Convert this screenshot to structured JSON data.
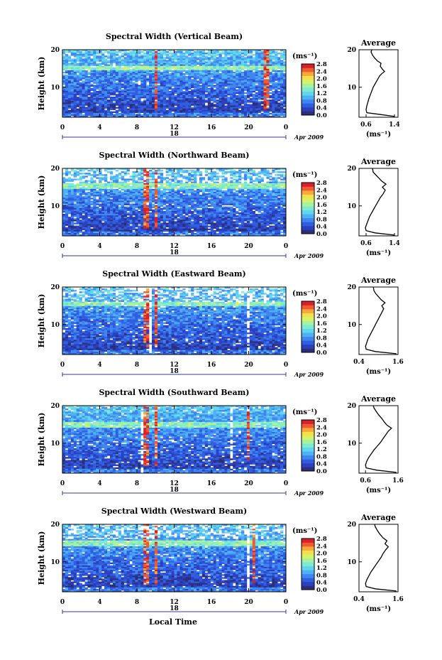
{
  "figure": {
    "xlabel": "Local Time",
    "date_label": "Apr 2009",
    "ylabel": "Height (km)",
    "units_label": "(ms⁻¹)",
    "average_title": "Average",
    "colors": {
      "colormap": [
        "#2b2f7a",
        "#2c3fbf",
        "#2f5ee0",
        "#3f86f0",
        "#4fb0f5",
        "#60d6ee",
        "#7fead2",
        "#a6f2a0",
        "#d4f26a",
        "#f4e04a",
        "#f7a83a",
        "#ef5a30",
        "#d8202a"
      ]
    }
  },
  "chart_data": [
    {
      "type": "heatmap",
      "title": "Spectral Width (Vertical Beam)",
      "xlim": [
        0,
        24
      ],
      "ylim": [
        2,
        20
      ],
      "xticks": [
        "0",
        "4",
        "8",
        "12",
        "16",
        "20",
        "0"
      ],
      "day_label": "18",
      "yticks": [
        "10",
        "20"
      ],
      "colorbar": {
        "range": [
          0.0,
          2.8
        ],
        "ticks": [
          "0.0",
          "0.4",
          "0.8",
          "1.2",
          "1.6",
          "2.0",
          "2.4",
          "2.8"
        ]
      },
      "features": {
        "red_columns": [
          10.0,
          21.8
        ],
        "warm_bands": [
          [
            14.5,
            15.8
          ]
        ],
        "sparse_top": false,
        "white_columns": []
      },
      "average": {
        "xticks": [
          "0.6",
          "1.4"
        ],
        "xlim": [
          0.4,
          1.5
        ],
        "yticks": [
          "10",
          "20"
        ],
        "ylim": [
          2,
          20
        ],
        "xlabel": "(ms⁻¹)",
        "profile": [
          [
            1.4,
            2.2
          ],
          [
            0.95,
            2.8
          ],
          [
            0.62,
            3.2
          ],
          [
            0.6,
            4.0
          ],
          [
            0.62,
            5.0
          ],
          [
            0.65,
            6.0
          ],
          [
            0.68,
            7.0
          ],
          [
            0.72,
            8.0
          ],
          [
            0.76,
            9.0
          ],
          [
            0.8,
            10.0
          ],
          [
            0.86,
            11.0
          ],
          [
            0.92,
            12.0
          ],
          [
            0.98,
            13.0
          ],
          [
            1.04,
            13.6
          ],
          [
            1.12,
            14.2
          ],
          [
            1.06,
            14.8
          ],
          [
            1.0,
            15.6
          ],
          [
            1.02,
            16.4
          ],
          [
            0.92,
            17.0
          ],
          [
            0.84,
            17.8
          ],
          [
            0.78,
            18.6
          ],
          [
            0.74,
            19.4
          ],
          [
            0.76,
            20.0
          ]
        ]
      }
    },
    {
      "type": "heatmap",
      "title": "Spectral Width (Northward Beam)",
      "xlim": [
        0,
        24
      ],
      "ylim": [
        2,
        20
      ],
      "xticks": [
        "0",
        "4",
        "8",
        "12",
        "16",
        "20",
        "0"
      ],
      "day_label": "18",
      "yticks": [
        "10",
        "20"
      ],
      "colorbar": {
        "range": [
          0.0,
          2.8
        ],
        "ticks": [
          "0.0",
          "0.4",
          "0.8",
          "1.2",
          "1.6",
          "2.0",
          "2.4",
          "2.8"
        ]
      },
      "features": {
        "red_columns": [
          9.0,
          10.0
        ],
        "warm_bands": [
          [
            14.5,
            16.0
          ]
        ],
        "sparse_top": true,
        "white_columns": []
      },
      "average": {
        "xticks": [
          "0.6",
          "1.4"
        ],
        "xlim": [
          0.4,
          1.5
        ],
        "yticks": [
          "10",
          "20"
        ],
        "ylim": [
          2,
          20
        ],
        "xlabel": "(ms⁻¹)",
        "profile": [
          [
            1.4,
            2.2
          ],
          [
            0.85,
            2.8
          ],
          [
            0.6,
            3.4
          ],
          [
            0.58,
            4.2
          ],
          [
            0.62,
            5.2
          ],
          [
            0.66,
            6.2
          ],
          [
            0.7,
            7.2
          ],
          [
            0.76,
            8.2
          ],
          [
            0.82,
            9.2
          ],
          [
            0.88,
            10.2
          ],
          [
            0.94,
            11.2
          ],
          [
            1.0,
            12.2
          ],
          [
            1.08,
            13.2
          ],
          [
            1.14,
            14.2
          ],
          [
            1.06,
            15.0
          ],
          [
            1.16,
            15.8
          ],
          [
            1.04,
            16.6
          ],
          [
            0.96,
            17.4
          ],
          [
            0.88,
            18.2
          ],
          [
            0.8,
            19.0
          ],
          [
            0.78,
            20.0
          ]
        ]
      }
    },
    {
      "type": "heatmap",
      "title": "Spectral Width (Eastward Beam)",
      "xlim": [
        0,
        24
      ],
      "ylim": [
        2,
        20
      ],
      "xticks": [
        "0",
        "4",
        "8",
        "12",
        "16",
        "20",
        "0"
      ],
      "day_label": "18",
      "yticks": [
        "10",
        "20"
      ],
      "colorbar": {
        "range": [
          0.0,
          2.8
        ],
        "ticks": [
          "0.0",
          "0.4",
          "0.8",
          "1.2",
          "1.6",
          "2.0",
          "2.4",
          "2.8"
        ]
      },
      "features": {
        "red_columns": [
          9.0,
          10.0
        ],
        "warm_bands": [
          [
            15.0,
            16.2
          ]
        ],
        "sparse_top": true,
        "white_columns": [
          9.3,
          20.0
        ]
      },
      "average": {
        "xticks": [
          "0.4",
          "1.6"
        ],
        "xlim": [
          0.4,
          1.6
        ],
        "yticks": [
          "10",
          "20"
        ],
        "ylim": [
          2,
          20
        ],
        "xlabel": "(ms⁻¹)",
        "profile": [
          [
            1.55,
            2.2
          ],
          [
            0.9,
            2.8
          ],
          [
            0.62,
            3.4
          ],
          [
            0.6,
            4.2
          ],
          [
            0.64,
            5.2
          ],
          [
            0.68,
            6.2
          ],
          [
            0.74,
            7.2
          ],
          [
            0.8,
            8.2
          ],
          [
            0.86,
            9.2
          ],
          [
            0.92,
            10.2
          ],
          [
            0.98,
            11.2
          ],
          [
            1.04,
            12.2
          ],
          [
            1.1,
            13.2
          ],
          [
            1.16,
            14.2
          ],
          [
            1.1,
            15.0
          ],
          [
            1.2,
            15.8
          ],
          [
            1.08,
            16.6
          ],
          [
            1.0,
            17.4
          ],
          [
            0.92,
            18.2
          ],
          [
            0.86,
            19.0
          ],
          [
            0.84,
            20.0
          ]
        ]
      }
    },
    {
      "type": "heatmap",
      "title": "Spectral Width (Southward Beam)",
      "xlim": [
        0,
        24
      ],
      "ylim": [
        2,
        20
      ],
      "xticks": [
        "0",
        "4",
        "8",
        "12",
        "16",
        "20",
        "0"
      ],
      "day_label": "18",
      "yticks": [
        "10",
        "20"
      ],
      "colorbar": {
        "range": [
          0.0,
          2.8
        ],
        "ticks": [
          "0.0",
          "0.4",
          "0.8",
          "1.2",
          "1.6",
          "2.0",
          "2.4",
          "2.8"
        ]
      },
      "features": {
        "red_columns": [
          9.0,
          10.0,
          20.0
        ],
        "warm_bands": [
          [
            14.0,
            15.5
          ]
        ],
        "sparse_top": false,
        "white_columns": [
          8.6,
          18.2,
          19.2
        ]
      },
      "average": {
        "xticks": [
          "0.6",
          "1.6"
        ],
        "xlim": [
          0.4,
          1.6
        ],
        "yticks": [
          "10",
          "20"
        ],
        "ylim": [
          2,
          20
        ],
        "xlabel": "(ms⁻¹)",
        "profile": [
          [
            1.55,
            2.2
          ],
          [
            0.95,
            2.8
          ],
          [
            0.62,
            3.4
          ],
          [
            0.6,
            4.2
          ],
          [
            0.64,
            5.2
          ],
          [
            0.7,
            6.2
          ],
          [
            0.78,
            7.2
          ],
          [
            0.86,
            8.2
          ],
          [
            0.96,
            9.2
          ],
          [
            1.06,
            10.2
          ],
          [
            1.14,
            11.2
          ],
          [
            1.22,
            12.2
          ],
          [
            1.3,
            13.2
          ],
          [
            1.4,
            14.0
          ],
          [
            1.26,
            14.8
          ],
          [
            1.18,
            15.6
          ],
          [
            1.1,
            16.6
          ],
          [
            1.0,
            17.6
          ],
          [
            0.92,
            18.6
          ],
          [
            0.86,
            19.4
          ],
          [
            0.84,
            20.0
          ]
        ]
      }
    },
    {
      "type": "heatmap",
      "title": "Spectral Width (Westward Beam)",
      "xlim": [
        0,
        24
      ],
      "ylim": [
        2,
        20
      ],
      "xticks": [
        "0",
        "4",
        "8",
        "12",
        "16",
        "20",
        "0"
      ],
      "day_label": "18",
      "yticks": [
        "10",
        "20"
      ],
      "colorbar": {
        "range": [
          0.0,
          2.8
        ],
        "ticks": [
          "0.0",
          "0.4",
          "0.8",
          "1.2",
          "1.6",
          "2.0",
          "2.4",
          "2.8"
        ]
      },
      "features": {
        "red_columns": [
          9.0,
          10.0,
          20.5
        ],
        "warm_bands": [
          [
            14.2,
            15.8
          ]
        ],
        "sparse_top": true,
        "white_columns": [
          20.0
        ]
      },
      "average": {
        "xticks": [
          "0.4",
          "1.6"
        ],
        "xlim": [
          0.4,
          1.6
        ],
        "yticks": [
          "10",
          "20"
        ],
        "ylim": [
          2,
          20
        ],
        "xlabel": "(ms⁻¹)",
        "profile": [
          [
            1.55,
            2.2
          ],
          [
            0.9,
            2.8
          ],
          [
            0.62,
            3.4
          ],
          [
            0.6,
            4.2
          ],
          [
            0.64,
            5.2
          ],
          [
            0.7,
            6.2
          ],
          [
            0.76,
            7.2
          ],
          [
            0.84,
            8.2
          ],
          [
            0.92,
            9.2
          ],
          [
            1.0,
            10.2
          ],
          [
            1.08,
            11.2
          ],
          [
            1.14,
            12.2
          ],
          [
            1.22,
            13.2
          ],
          [
            1.3,
            14.0
          ],
          [
            1.2,
            14.8
          ],
          [
            1.26,
            15.6
          ],
          [
            1.14,
            16.4
          ],
          [
            1.04,
            17.4
          ],
          [
            0.96,
            18.4
          ],
          [
            0.9,
            19.4
          ],
          [
            0.88,
            20.0
          ]
        ]
      }
    }
  ]
}
